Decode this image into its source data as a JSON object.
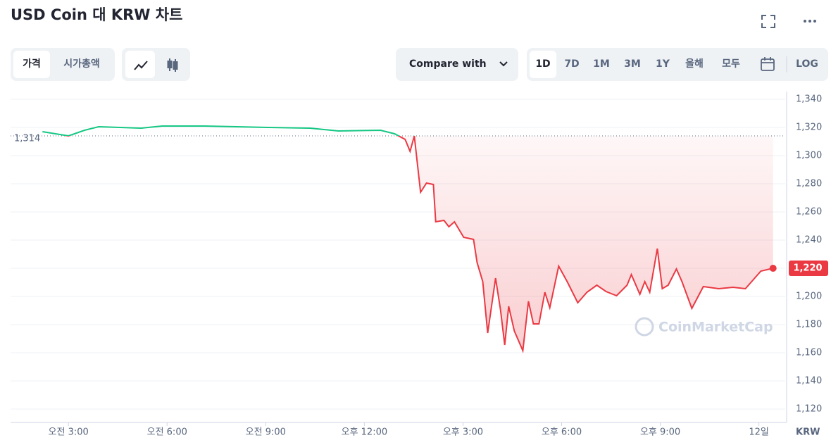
{
  "header": {
    "title": "USD Coin 대 KRW 차트"
  },
  "toolbar": {
    "tabs": [
      "가격",
      "시가총액"
    ],
    "compare": "Compare with",
    "ranges": [
      "1D",
      "7D",
      "1M",
      "3M",
      "1Y",
      "올해",
      "모두"
    ],
    "log": "LOG"
  },
  "chart_data": {
    "type": "line",
    "x": [
      2.21,
      3.0,
      3.49,
      3.92,
      5.21,
      5.85,
      7.14,
      9.06,
      10.35,
      11.21,
      12.49,
      12.92,
      13.24,
      13.39,
      13.52,
      13.71,
      13.89,
      14.1,
      14.17,
      14.42,
      14.57,
      14.74,
      15.02,
      15.32,
      15.43,
      15.6,
      15.75,
      15.99,
      16.14,
      16.27,
      16.39,
      16.56,
      16.82,
      16.99,
      17.14,
      17.31,
      17.49,
      17.64,
      17.91,
      18.17,
      18.49,
      18.77,
      19.07,
      19.35,
      19.67,
      19.99,
      20.12,
      20.38,
      20.53,
      20.68,
      20.91,
      21.06,
      21.24,
      21.49,
      21.66,
      21.96,
      22.31,
      22.78,
      23.21,
      23.59,
      24.06,
      24.43
    ],
    "values": [
      1317,
      1314,
      1318,
      1320.5,
      1319.5,
      1321,
      1321,
      1320,
      1319.5,
      1317.5,
      1318,
      1315.5,
      1311.5,
      1303,
      1314,
      1274,
      1280.5,
      1279.5,
      1253,
      1254,
      1249.5,
      1253,
      1242,
      1240.5,
      1224,
      1210.5,
      1174,
      1213,
      1190.5,
      1165.5,
      1193,
      1175.5,
      1161.5,
      1196.5,
      1180.5,
      1180.5,
      1203,
      1192,
      1221.5,
      1210.5,
      1195.5,
      1203,
      1208,
      1203.5,
      1200.5,
      1208,
      1215.5,
      1201.5,
      1210.5,
      1203,
      1234,
      1205.5,
      1208,
      1219.5,
      1210.5,
      1191.5,
      1207,
      1205.5,
      1206.5,
      1205.5,
      1218,
      1220
    ],
    "value_labels": [
      null,
      null,
      null,
      null,
      null,
      null,
      null,
      null,
      null,
      null,
      null,
      null,
      null,
      null,
      null,
      null,
      null,
      null,
      null,
      null,
      null,
      null,
      null,
      null,
      null,
      null,
      null,
      null,
      null,
      null,
      null,
      null,
      null,
      null,
      null,
      null,
      null,
      null,
      null,
      null,
      null,
      null,
      null,
      null,
      null,
      null,
      null,
      null,
      null,
      null,
      null,
      null,
      null,
      null,
      null,
      null,
      null,
      null,
      null,
      null,
      null,
      "1,220"
    ],
    "baseline": {
      "value": 1314,
      "label": "1,314"
    },
    "up_color": "#16c784",
    "down_color": "#ea3943",
    "xlim": [
      1.24,
      24.8
    ],
    "ylim": [
      1110.5,
      1345.5
    ],
    "xticks": [
      {
        "value": 3,
        "label": "오전 3:00"
      },
      {
        "value": 6,
        "label": "오전 6:00"
      },
      {
        "value": 9,
        "label": "오전 9:00"
      },
      {
        "value": 12,
        "label": "오후 12:00"
      },
      {
        "value": 15,
        "label": "오후 3:00"
      },
      {
        "value": 18,
        "label": "오후 6:00"
      },
      {
        "value": 21,
        "label": "오후 9:00"
      },
      {
        "value": 24,
        "label": "12일"
      }
    ],
    "yticks": [
      {
        "value": 1120,
        "label": "1,120"
      },
      {
        "value": 1140,
        "label": "1,140"
      },
      {
        "value": 1160,
        "label": "1,160"
      },
      {
        "value": 1180,
        "label": "1,180"
      },
      {
        "value": 1200,
        "label": "1,200"
      },
      {
        "value": 1220,
        "label": "1,220"
      },
      {
        "value": 1240,
        "label": "1,240"
      },
      {
        "value": 1260,
        "label": "1,260"
      },
      {
        "value": 1280,
        "label": "1,280"
      },
      {
        "value": 1300,
        "label": "1,300"
      },
      {
        "value": 1320,
        "label": "1,320"
      },
      {
        "value": 1340,
        "label": "1,340"
      }
    ],
    "y_unit": "KRW",
    "watermark": "CoinMarketCap",
    "grid": true
  }
}
